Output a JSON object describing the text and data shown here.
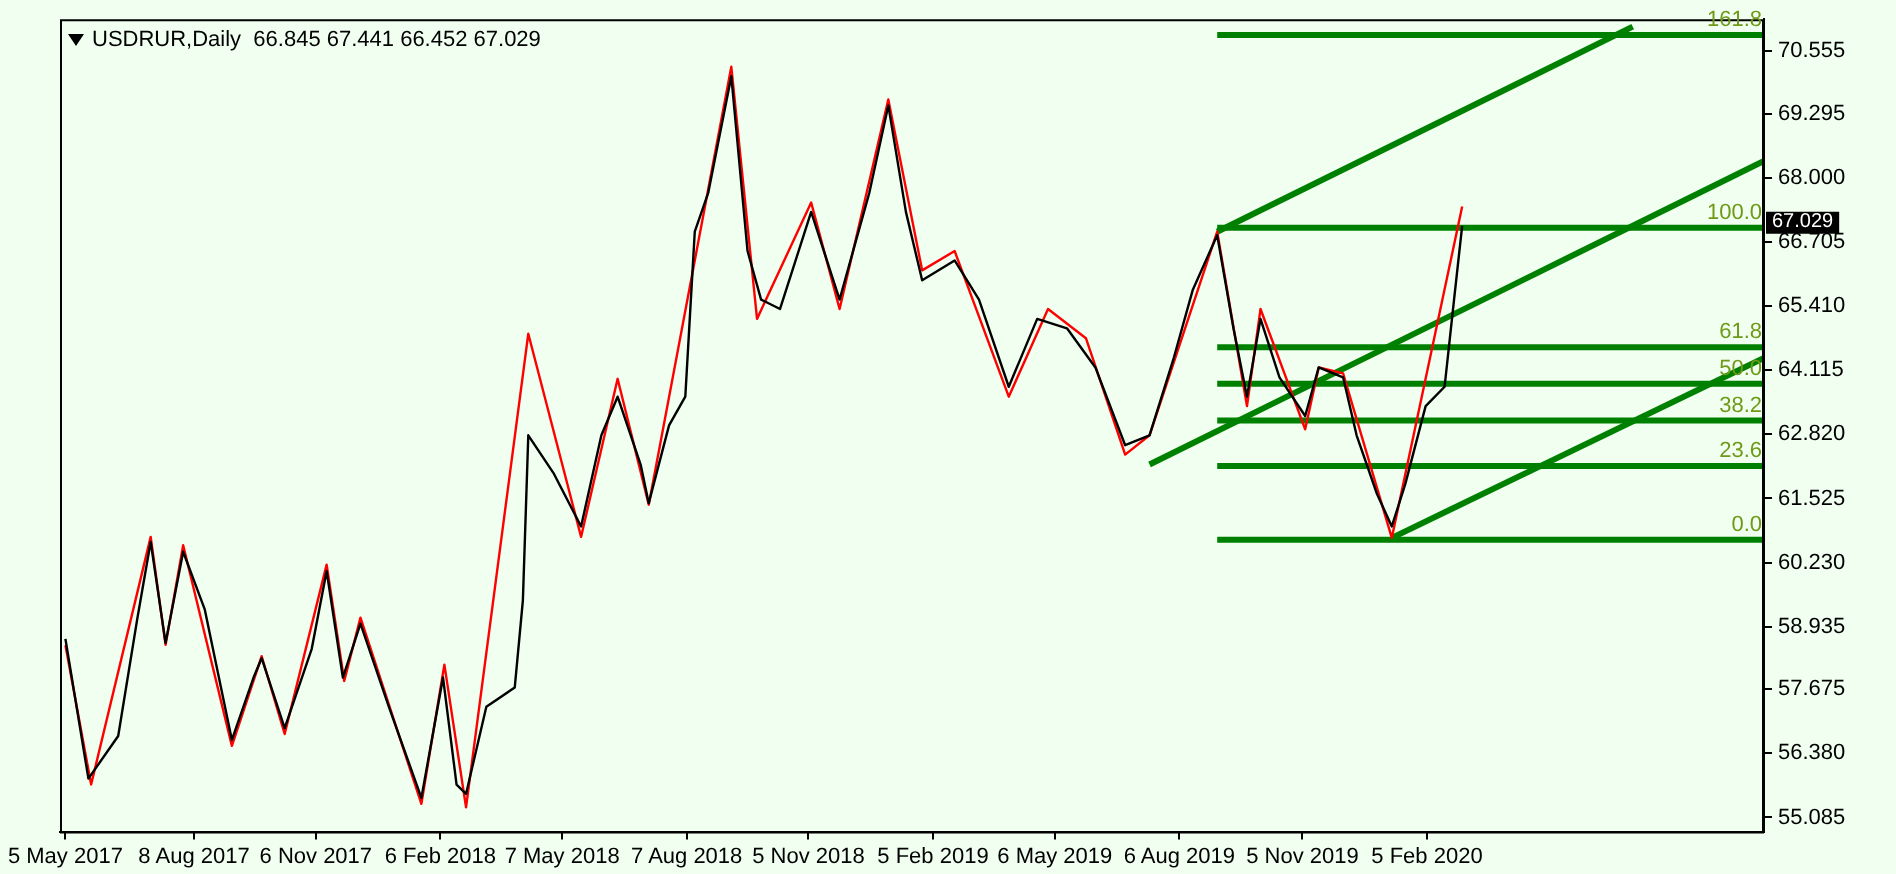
{
  "chart_data": {
    "type": "line",
    "title": "USDRUR,Daily  66.845 67.441 66.452 67.029",
    "xlim": [
      "2017-05-01",
      "2020-10-11"
    ],
    "xticks": [
      {
        "value": "2017-05-05",
        "label": "5 May 2017"
      },
      {
        "value": "2017-08-08",
        "label": "8 Aug 2017"
      },
      {
        "value": "2017-11-06",
        "label": "6 Nov 2017"
      },
      {
        "value": "2018-02-06",
        "label": "6 Feb 2018"
      },
      {
        "value": "2018-05-07",
        "label": "7 May 2018"
      },
      {
        "value": "2018-08-07",
        "label": "7 Aug 2018"
      },
      {
        "value": "2018-11-05",
        "label": "5 Nov 2018"
      },
      {
        "value": "2019-02-05",
        "label": "5 Feb 2019"
      },
      {
        "value": "2019-05-06",
        "label": "6 May 2019"
      },
      {
        "value": "2019-08-06",
        "label": "6 Aug 2019"
      },
      {
        "value": "2019-11-05",
        "label": "5 Nov 2019"
      },
      {
        "value": "2020-02-05",
        "label": "5 Feb 2020"
      }
    ],
    "ylim": [
      54.8,
      71.2
    ],
    "yticks": [
      55.085,
      {
        "value": 56.38,
        "label": "56.380"
      },
      57.675,
      58.935,
      {
        "value": 60.23,
        "label": "60.230"
      },
      61.525,
      {
        "value": 62.82,
        "label": "62.820"
      },
      64.115,
      {
        "value": 65.41,
        "label": "65.410"
      },
      66.705,
      {
        "value": 68,
        "label": "68.000"
      },
      69.295,
      70.555
    ],
    "series": [
      {
        "color": "#000000",
        "x": [
          "2017-05-05",
          "2017-05-22",
          "2017-06-13",
          "2017-06-27",
          "2017-07-07",
          "2017-07-18",
          "2017-07-31",
          "2017-08-16",
          "2017-09-05",
          "2017-09-21",
          "2017-09-27",
          "2017-10-14",
          "2017-11-03",
          "2017-11-14",
          "2017-11-26",
          "2017-12-09",
          "2017-12-30",
          "2018-01-23",
          "2018-02-08",
          "2018-02-18",
          "2018-02-25",
          "2018-03-12",
          "2018-04-02",
          "2018-04-08",
          "2018-04-12",
          "2018-05-01",
          "2018-05-21",
          "2018-06-05",
          "2018-06-17",
          "2018-07-04",
          "2018-07-10",
          "2018-07-25",
          "2018-08-06",
          "2018-08-13",
          "2018-08-23",
          "2018-09-09",
          "2018-09-21",
          "2018-10-01",
          "2018-10-15",
          "2018-11-07",
          "2018-11-28",
          "2018-12-20",
          "2019-01-03",
          "2019-01-16",
          "2019-01-28",
          "2019-02-21",
          "2019-03-11",
          "2019-04-02",
          "2019-04-23",
          "2019-05-15",
          "2019-06-05",
          "2019-06-27",
          "2019-07-15",
          "2019-08-02",
          "2019-08-16",
          "2019-09-03",
          "2019-09-15",
          "2019-09-25",
          "2019-10-05",
          "2019-10-19",
          "2019-11-07",
          "2019-11-17",
          "2019-12-05",
          "2019-12-15",
          "2019-12-30",
          "2020-01-10",
          "2020-01-20",
          "2020-02-04",
          "2020-02-18",
          "2020-02-25",
          "2020-03-02"
        ],
        "values": [
          58.69,
          55.87,
          56.73,
          59.08,
          60.65,
          58.61,
          60.45,
          59.28,
          56.65,
          57.91,
          58.3,
          56.89,
          58.49,
          60.06,
          57.91,
          59.0,
          57.32,
          55.48,
          57.91,
          55.75,
          55.56,
          57.32,
          57.71,
          59.47,
          62.8,
          62.02,
          60.96,
          62.8,
          63.58,
          62.21,
          61.43,
          63.0,
          63.58,
          66.91,
          67.7,
          70.05,
          66.52,
          65.54,
          65.35,
          67.31,
          65.54,
          67.7,
          69.46,
          67.31,
          65.93,
          66.33,
          65.54,
          63.78,
          65.15,
          64.96,
          64.17,
          62.6,
          62.8,
          64.37,
          65.74,
          66.84,
          64.96,
          63.58,
          65.15,
          63.97,
          63.19,
          64.17,
          63.97,
          62.8,
          61.62,
          60.96,
          61.82,
          63.39,
          63.78,
          65.54,
          67.029
        ]
      },
      {
        "color": "#ff0000",
        "x": [
          "2017-05-05",
          "2017-05-24",
          "2017-07-07",
          "2017-07-18",
          "2017-07-31",
          "2017-09-05",
          "2017-09-27",
          "2017-10-14",
          "2017-11-14",
          "2017-11-27",
          "2017-12-09",
          "2018-01-23",
          "2018-02-09",
          "2018-02-25",
          "2018-04-12",
          "2018-05-21",
          "2018-06-17",
          "2018-07-10",
          "2018-09-09",
          "2018-09-28",
          "2018-11-07",
          "2018-11-28",
          "2019-01-03",
          "2019-01-28",
          "2019-02-21",
          "2019-04-02",
          "2019-05-01",
          "2019-05-29",
          "2019-06-27",
          "2019-07-15",
          "2019-09-03",
          "2019-09-25",
          "2019-10-05",
          "2019-11-07",
          "2019-11-17",
          "2019-12-05",
          "2020-01-10",
          "2020-03-02"
        ],
        "values": [
          58.56,
          55.75,
          60.75,
          58.57,
          60.58,
          56.53,
          58.34,
          56.77,
          60.19,
          57.84,
          59.12,
          55.36,
          58.17,
          55.29,
          64.85,
          60.75,
          63.94,
          61.4,
          70.24,
          65.15,
          67.5,
          65.35,
          69.58,
          66.13,
          66.52,
          63.58,
          65.35,
          64.76,
          62.41,
          62.8,
          66.91,
          63.39,
          65.35,
          62.92,
          64.17,
          64.05,
          60.73,
          67.42
        ]
      },
      {
        "color": "#008000",
        "x": [
          "2019-09-03",
          "2020-07-06"
        ],
        "values": [
          66.91,
          71.05
        ]
      },
      {
        "color": "#008000",
        "x": [
          "2019-07-15",
          "2020-10-11"
        ],
        "values": [
          62.21,
          68.34
        ]
      },
      {
        "color": "#008000",
        "x": [
          "2020-01-10",
          "2020-10-11"
        ],
        "values": [
          60.73,
          64.36
        ]
      },
      {
        "color": "#008000",
        "x": [
          "2019-09-03",
          "2020-10-11"
        ],
        "values": [
          70.88,
          70.88
        ]
      },
      {
        "color": "#008000",
        "x": [
          "2019-09-03",
          "2020-10-11"
        ],
        "values": [
          66.99,
          66.99
        ]
      },
      {
        "color": "#008000",
        "x": [
          "2019-09-03",
          "2020-10-11"
        ],
        "values": [
          64.58,
          64.58
        ]
      },
      {
        "color": "#008000",
        "x": [
          "2019-09-03",
          "2020-10-11"
        ],
        "values": [
          63.84,
          63.84
        ]
      },
      {
        "color": "#008000",
        "x": [
          "2019-09-03",
          "2020-10-11"
        ],
        "values": [
          63.1,
          63.1
        ]
      },
      {
        "color": "#008000",
        "x": [
          "2019-09-03",
          "2020-10-11"
        ],
        "values": [
          62.18,
          62.18
        ]
      },
      {
        "color": "#008000",
        "x": [
          "2019-09-03",
          "2020-10-11"
        ],
        "values": [
          60.69,
          60.69
        ]
      }
    ],
    "annotations": [
      {
        "text": "161.8",
        "x": "2020-10-11",
        "y": 70.88
      },
      {
        "text": "100.0",
        "x": "2020-10-11",
        "y": 66.99
      },
      {
        "text": "61.8",
        "x": "2020-10-11",
        "y": 64.58
      },
      {
        "text": "50.0",
        "x": "2020-10-11",
        "y": 63.84
      },
      {
        "text": "38.2",
        "x": "2020-10-11",
        "y": 63.1
      },
      {
        "text": "23.6",
        "x": "2020-10-11",
        "y": 62.18
      },
      {
        "text": "0.0",
        "x": "2020-10-11",
        "y": 60.69
      },
      "67.029"
    ]
  }
}
